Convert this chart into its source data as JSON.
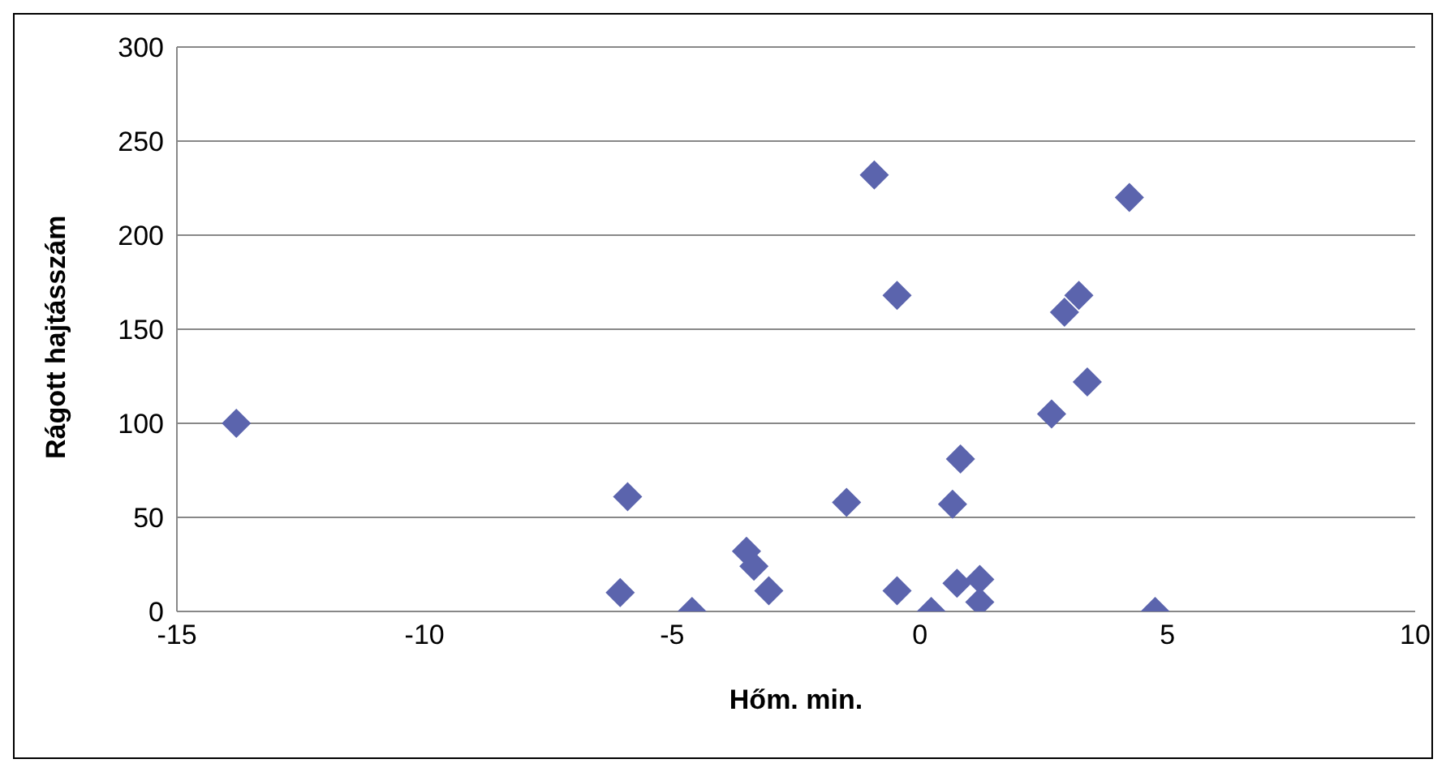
{
  "chart_data": {
    "type": "scatter",
    "xlabel": "Hőm. min.",
    "ylabel": "Rágott hajtásszám",
    "x": [
      -13.8,
      -5.9,
      -6.05,
      -4.6,
      -3.5,
      -3.35,
      -3.05,
      -1.48,
      -0.92,
      -0.46,
      -0.46,
      0.23,
      0.66,
      0.75,
      0.82,
      1.21,
      1.21,
      2.66,
      2.92,
      3.21,
      3.38,
      4.23,
      4.75
    ],
    "series": [
      {
        "color": "#5b64ad",
        "values": [
          100,
          61,
          10,
          0,
          32,
          24,
          11,
          58,
          232,
          168,
          11,
          0,
          57,
          15,
          81,
          17,
          5,
          105,
          159,
          168,
          122,
          220,
          0
        ]
      }
    ],
    "xlim": [
      -15,
      10
    ],
    "xticks": [
      -15,
      -10,
      -5,
      0,
      5,
      10
    ],
    "ylim": [
      0,
      300
    ],
    "yticks": [
      0,
      50,
      100,
      150,
      200,
      250,
      300
    ],
    "grid": "y",
    "marker": "diamond",
    "legend": false
  }
}
